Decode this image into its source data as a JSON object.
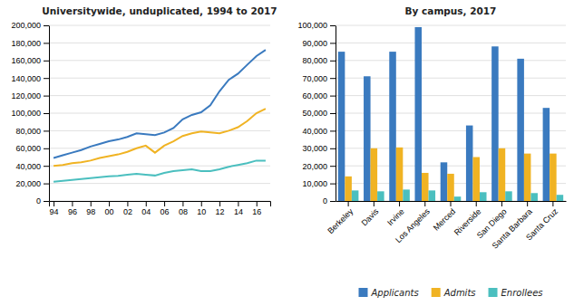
{
  "chart_data": [
    {
      "type": "line",
      "title": "Universitywide, unduplicated, 1994 to 2017",
      "categories": [
        "94",
        null,
        "96",
        null,
        "98",
        null,
        "00",
        null,
        "02",
        null,
        "04",
        null,
        "06",
        null,
        "08",
        null,
        "10",
        null,
        "12",
        null,
        "14",
        null,
        "16",
        null
      ],
      "series": [
        {
          "color": "#3a7abf",
          "values": [
            49000,
            52000,
            55000,
            58000,
            62000,
            65000,
            68000,
            70000,
            73000,
            77000,
            76000,
            75000,
            78000,
            83000,
            93000,
            98000,
            101000,
            109000,
            125000,
            138000,
            145000,
            155000,
            165000,
            172000
          ]
        },
        {
          "color": "#f0b323",
          "values": [
            40000,
            41000,
            43000,
            44000,
            46000,
            49000,
            51000,
            53000,
            56000,
            60000,
            63000,
            55000,
            63000,
            68000,
            74000,
            77000,
            79000,
            78000,
            77000,
            80000,
            84000,
            91000,
            100000,
            105000
          ]
        },
        {
          "color": "#4bbfbf",
          "values": [
            22000,
            23000,
            24000,
            25000,
            26000,
            27000,
            28000,
            28500,
            30000,
            31000,
            30000,
            29000,
            32000,
            34000,
            35000,
            36000,
            34000,
            34000,
            36000,
            39000,
            41000,
            43000,
            46000,
            46000
          ]
        }
      ],
      "ylim": [
        0,
        200000
      ],
      "yticks": [
        0,
        {
          "value": 20000,
          "label": "20,000"
        },
        {
          "value": 40000,
          "label": "40,000"
        },
        {
          "value": 60000,
          "label": "60,000"
        },
        {
          "value": 80000,
          "label": "80,000"
        },
        {
          "value": 100000,
          "label": "100,000"
        },
        {
          "value": 120000,
          "label": "120,000"
        },
        {
          "value": 140000,
          "label": "140,000"
        },
        {
          "value": 160000,
          "label": "160,000"
        },
        {
          "value": 180000,
          "label": "180,000"
        },
        {
          "value": 200000,
          "label": "200,000"
        }
      ],
      "grid": true
    },
    {
      "type": "bar",
      "title": "By campus, 2017",
      "categories": [
        "Berkeley",
        "Davis",
        "Irvine",
        "Los Angeles",
        "Merced",
        "Riverside",
        "San Diego",
        "Santa Barbara",
        "Santa Cruz"
      ],
      "series": [
        {
          "name": "Applicants",
          "color": "#3a7abf",
          "values": [
            85000,
            71000,
            85000,
            99000,
            22000,
            43000,
            88000,
            81000,
            53000
          ]
        },
        {
          "name": "Admits",
          "color": "#f0b323",
          "values": [
            14000,
            30000,
            30500,
            16000,
            15500,
            25000,
            30000,
            27000,
            27000
          ]
        },
        {
          "name": "Enrollees",
          "color": "#4bbfbf",
          "values": [
            6000,
            5500,
            6500,
            6000,
            2500,
            5000,
            5500,
            4500,
            3500
          ]
        }
      ],
      "ylim": [
        0,
        100000
      ],
      "yticks": [
        0,
        {
          "value": 10000,
          "label": "10,000"
        },
        {
          "value": 20000,
          "label": "20,000"
        },
        {
          "value": 30000,
          "label": "30,000"
        },
        {
          "value": 40000,
          "label": "40,000"
        },
        {
          "value": 50000,
          "label": "50,000"
        },
        {
          "value": 60000,
          "label": "60,000"
        },
        {
          "value": 70000,
          "label": "70,000"
        },
        {
          "value": 80000,
          "label": "80,000"
        },
        {
          "value": 90000,
          "label": "90,000"
        },
        {
          "value": 100000,
          "label": "100,000"
        }
      ],
      "grid": true,
      "legend": "bottom"
    }
  ]
}
